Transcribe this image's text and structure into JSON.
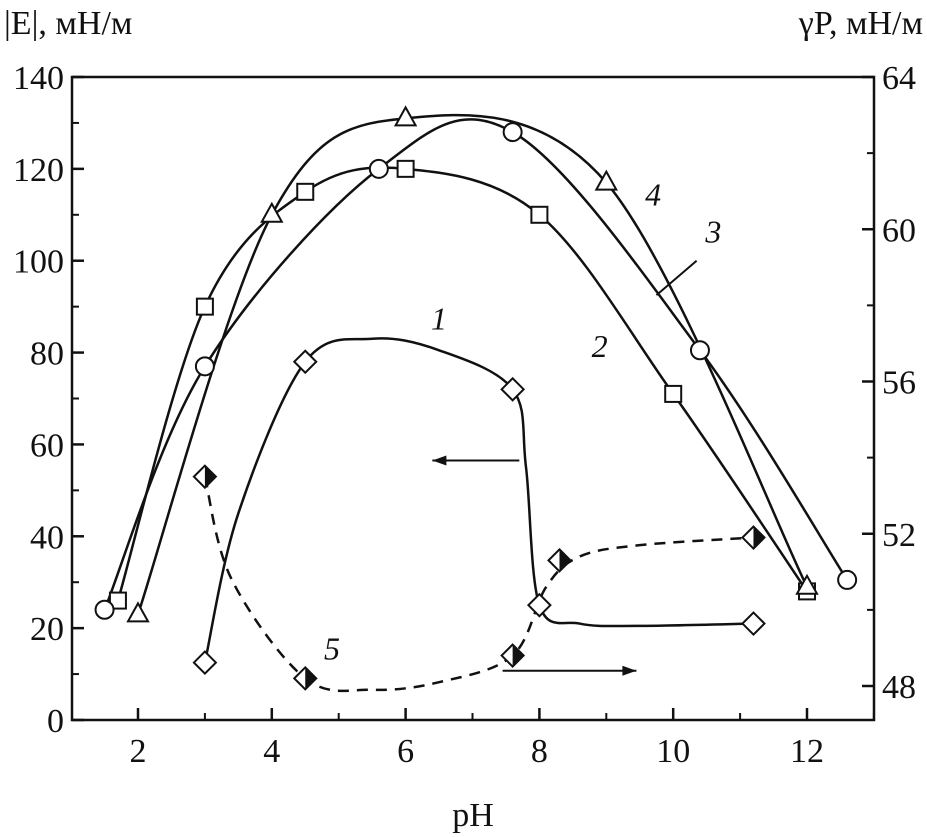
{
  "chart_data": {
    "type": "line",
    "xlabel": "pH",
    "ylabel_left": "|E|, мН/м",
    "ylabel_right": "γP, мН/м",
    "xlim": [
      1,
      13
    ],
    "ylim_left": [
      0,
      140
    ],
    "ylim_right": [
      47.2,
      64
    ],
    "xticks": [
      2,
      4,
      6,
      8,
      10,
      12
    ],
    "yticks_left": [
      0,
      20,
      40,
      60,
      80,
      100,
      120,
      140
    ],
    "yticks_right": [
      48,
      52,
      56,
      60,
      64
    ],
    "grid": false,
    "series": [
      {
        "name": "1",
        "axis": "left",
        "marker": "diamond",
        "dashed": false,
        "points": [
          [
            3,
            12.5
          ],
          [
            4.5,
            78
          ],
          [
            7.6,
            72
          ],
          [
            8,
            25
          ],
          [
            11.2,
            21
          ]
        ],
        "curve": [
          [
            3,
            12.5
          ],
          [
            3.5,
            45
          ],
          [
            4.5,
            78
          ],
          [
            5.5,
            83
          ],
          [
            6.5,
            80.5
          ],
          [
            7.6,
            72
          ],
          [
            7.8,
            55
          ],
          [
            8,
            25
          ],
          [
            8.6,
            21
          ],
          [
            9.5,
            20.5
          ],
          [
            11.2,
            21
          ]
        ],
        "label_at": [
          6.5,
          85
        ]
      },
      {
        "name": "2",
        "axis": "left",
        "marker": "square",
        "dashed": false,
        "points": [
          [
            1.7,
            26
          ],
          [
            3,
            90
          ],
          [
            4.5,
            115
          ],
          [
            6,
            120
          ],
          [
            8,
            110
          ],
          [
            10,
            71
          ],
          [
            12,
            28
          ]
        ],
        "label_at": [
          8.9,
          79
        ]
      },
      {
        "name": "3",
        "axis": "left",
        "marker": "circle",
        "dashed": false,
        "points": [
          [
            1.5,
            24
          ],
          [
            3,
            77
          ],
          [
            5.6,
            120
          ],
          [
            7.6,
            128
          ],
          [
            10.4,
            80.5
          ],
          [
            12.6,
            30.5
          ]
        ],
        "label_at": [
          10.6,
          104
        ]
      },
      {
        "name": "4",
        "axis": "left",
        "marker": "triangle",
        "dashed": false,
        "points": [
          [
            2,
            23
          ],
          [
            4,
            110
          ],
          [
            6,
            131
          ],
          [
            9,
            117
          ],
          [
            12,
            29
          ]
        ],
        "label_at": [
          9.7,
          112
        ]
      },
      {
        "name": "5",
        "axis": "right",
        "marker": "half-diamond",
        "dashed": true,
        "points": [
          [
            3,
            53.5
          ],
          [
            4.5,
            48.2
          ],
          [
            7.6,
            48.8
          ],
          [
            8.3,
            51.3
          ],
          [
            11.2,
            51.9
          ]
        ],
        "curve": [
          [
            3,
            53.5
          ],
          [
            3.4,
            50.8
          ],
          [
            4.5,
            48.2
          ],
          [
            5.5,
            47.9
          ],
          [
            6.5,
            48.1
          ],
          [
            7.6,
            48.8
          ],
          [
            8.1,
            50.6
          ],
          [
            8.6,
            51.4
          ],
          [
            9.5,
            51.7
          ],
          [
            11.2,
            51.9
          ]
        ],
        "label_at": [
          4.9,
          48.7
        ]
      }
    ],
    "annotations": [
      {
        "type": "arrow",
        "axis": "left",
        "from": [
          7.7,
          56.5
        ],
        "to": [
          6.4,
          56.5
        ]
      },
      {
        "type": "arrow",
        "axis": "right",
        "from": [
          7.45,
          48.4
        ],
        "to": [
          9.45,
          48.4
        ]
      }
    ]
  }
}
